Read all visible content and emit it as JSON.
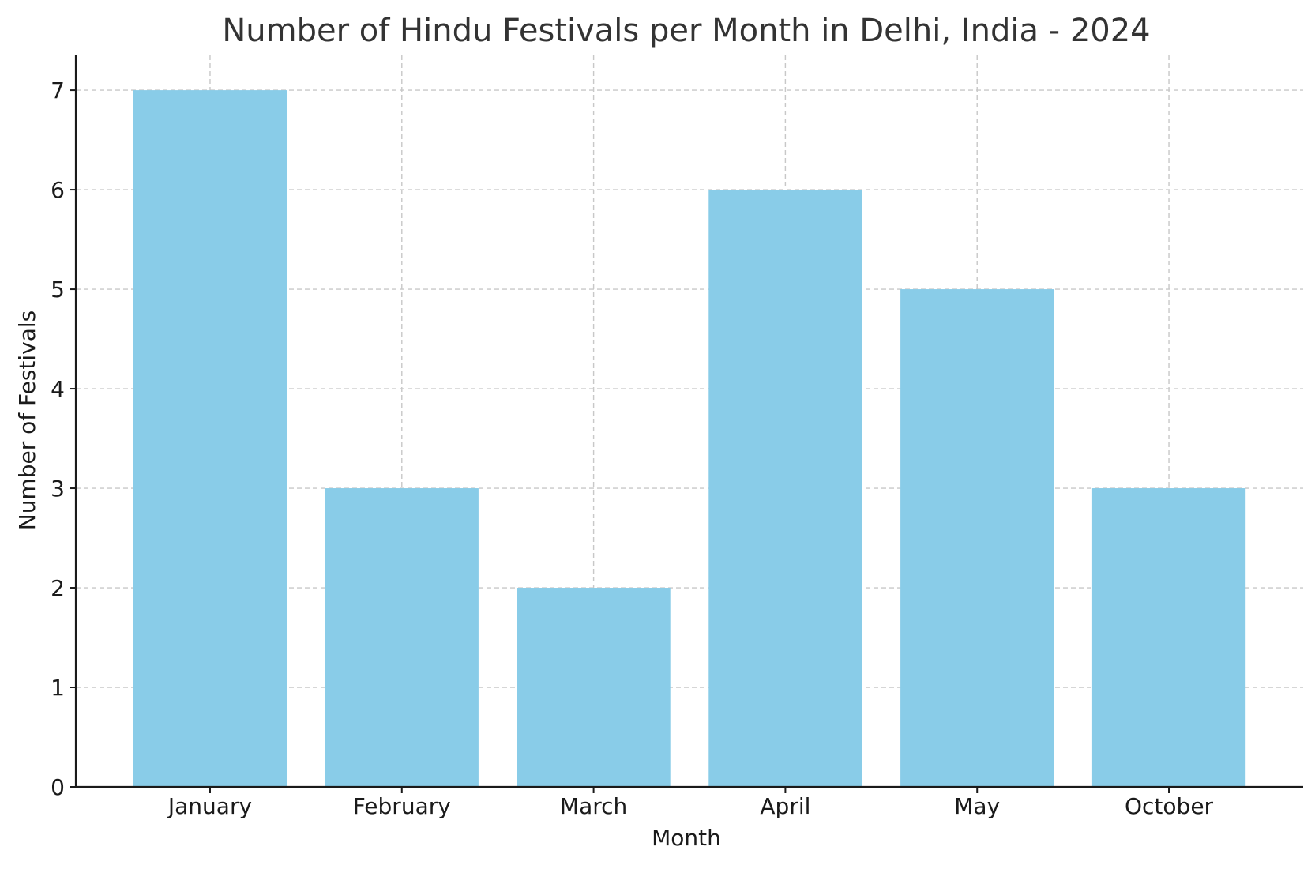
{
  "chart_data": {
    "type": "bar",
    "title": "Number of Hindu Festivals per Month in Delhi, India - 2024",
    "xlabel": "Month",
    "ylabel": "Number of Festivals",
    "categories": [
      "January",
      "February",
      "March",
      "April",
      "May",
      "October"
    ],
    "values": [
      7,
      3,
      2,
      6,
      5,
      3
    ],
    "ylim": [
      0,
      7.35
    ],
    "yticks": [
      0,
      1,
      2,
      3,
      4,
      5,
      6,
      7
    ],
    "grid": true,
    "legend": "none",
    "bar_color": "#89CCE8",
    "grid_color": "#c8c8c8",
    "axis_color": "#1a1a1a"
  }
}
